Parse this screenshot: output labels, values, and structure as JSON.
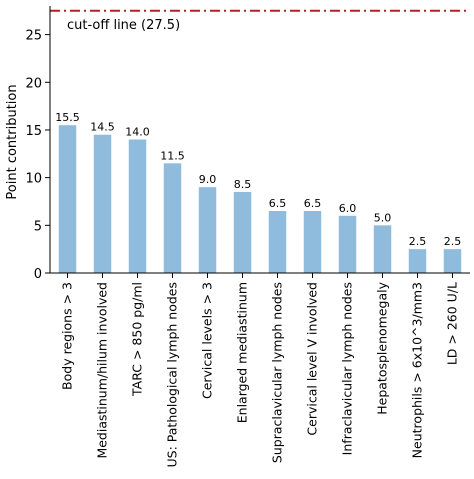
{
  "chart_data": {
    "type": "bar",
    "title": "",
    "xlabel": "",
    "ylabel": "Point contribution",
    "ylim": [
      0,
      28
    ],
    "yticks": [
      0,
      5,
      10,
      15,
      20,
      25
    ],
    "grid": false,
    "categories": [
      "Body regions > 3",
      "Mediastinum/hilum involved",
      "TARC > 850 pg/ml",
      "US: Pathological lymph nodes",
      "Cervical levels > 3",
      "Enlarged mediastinum",
      "Supraclavicular lymph nodes",
      "Cervical level V involved",
      "Infraclavicular lymph nodes",
      "Hepatosplenomegaly",
      "Neutrophils > 6x10^3/mm3",
      "LD > 260 U/L"
    ],
    "values": [
      15.5,
      14.5,
      14.0,
      11.5,
      9.0,
      8.5,
      6.5,
      6.5,
      6.0,
      5.0,
      2.5,
      2.5
    ],
    "value_labels": [
      "15.5",
      "14.5",
      "14.0",
      "11.5",
      "9.0",
      "8.5",
      "6.5",
      "6.5",
      "6.0",
      "5.0",
      "2.5",
      "2.5"
    ],
    "bar_color": "#8fbcdc",
    "reference_line": {
      "value": 27.5,
      "label": "cut-off line (27.5)",
      "color": "#b22222",
      "style": "dash-dot"
    }
  }
}
